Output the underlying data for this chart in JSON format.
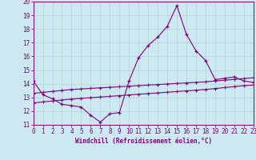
{
  "x": [
    0,
    1,
    2,
    3,
    4,
    5,
    6,
    7,
    8,
    9,
    10,
    11,
    12,
    13,
    14,
    15,
    16,
    17,
    18,
    19,
    20,
    21,
    22,
    23
  ],
  "line1": [
    14.2,
    13.2,
    12.9,
    12.5,
    12.4,
    12.3,
    11.7,
    11.2,
    11.8,
    11.9,
    14.2,
    15.9,
    16.8,
    17.4,
    18.2,
    19.7,
    17.6,
    16.4,
    15.7,
    14.3,
    14.4,
    14.5,
    14.2,
    14.1
  ],
  "line2": [
    13.3,
    13.37,
    13.44,
    13.51,
    13.58,
    13.62,
    13.66,
    13.7,
    13.74,
    13.78,
    13.82,
    13.86,
    13.9,
    13.94,
    13.98,
    14.02,
    14.06,
    14.1,
    14.14,
    14.2,
    14.26,
    14.32,
    14.38,
    14.44
  ],
  "line3": [
    12.6,
    12.67,
    12.74,
    12.81,
    12.88,
    12.93,
    12.98,
    13.03,
    13.08,
    13.13,
    13.18,
    13.23,
    13.28,
    13.33,
    13.38,
    13.43,
    13.48,
    13.53,
    13.58,
    13.65,
    13.72,
    13.79,
    13.86,
    13.9
  ],
  "color": "#800080",
  "bg_color": "#cce8f0",
  "grid_color": "#b0d8cc",
  "xlabel": "Windchill (Refroidissement éolien,°C)",
  "ylim": [
    11,
    20
  ],
  "xlim": [
    0,
    23
  ],
  "yticks": [
    11,
    12,
    13,
    14,
    15,
    16,
    17,
    18,
    19,
    20
  ],
  "xticks": [
    0,
    1,
    2,
    3,
    4,
    5,
    6,
    7,
    8,
    9,
    10,
    11,
    12,
    13,
    14,
    15,
    16,
    17,
    18,
    19,
    20,
    21,
    22,
    23
  ]
}
